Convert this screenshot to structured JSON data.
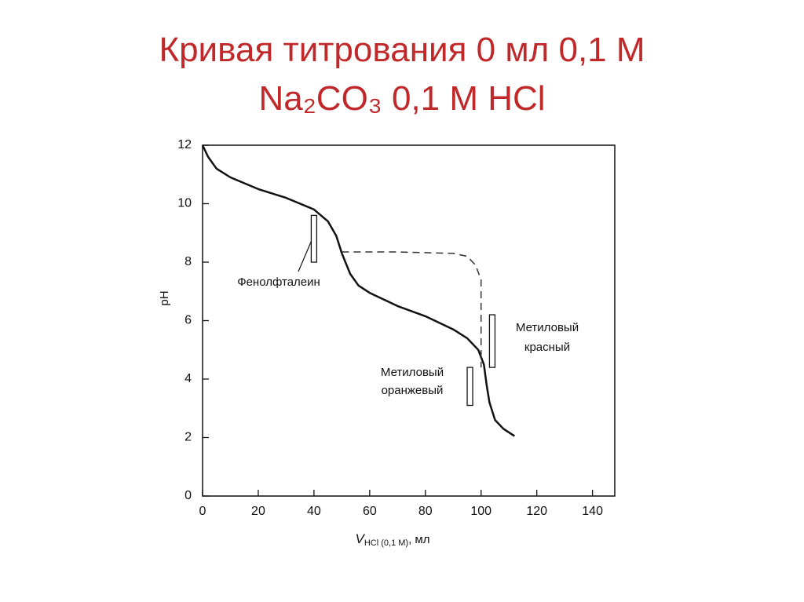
{
  "chart_data": {
    "type": "line",
    "title": [
      "Кривая титрования 0 мл 0,1 М",
      "Na₂CO₃ 0,1 М HCl"
    ],
    "y_label": "pH",
    "x_label": {
      "main": "V",
      "sub": "HCl (0,1 М)",
      "unit": ", мл"
    },
    "xlim": [
      0,
      148
    ],
    "ylim": [
      0,
      12
    ],
    "xticks": [
      0,
      20,
      40,
      60,
      80,
      100,
      120,
      140
    ],
    "yticks": [
      0,
      2,
      4,
      6,
      8,
      10,
      12
    ],
    "series": [
      {
        "color": "#111111",
        "style": "solid",
        "x": [
          0,
          2,
          5,
          10,
          20,
          30,
          40,
          45,
          48,
          50,
          53,
          56,
          60,
          70,
          80,
          90,
          95,
          99,
          101,
          102,
          103,
          105,
          108,
          112
        ],
        "values": [
          12,
          11.6,
          11.2,
          10.9,
          10.5,
          10.2,
          9.8,
          9.4,
          8.9,
          8.3,
          7.6,
          7.2,
          6.95,
          6.5,
          6.15,
          5.7,
          5.4,
          5.0,
          4.5,
          3.8,
          3.2,
          2.6,
          2.3,
          2.05
        ]
      },
      {
        "color": "#333333",
        "style": "dashed",
        "x": [
          50,
          70,
          90,
          95,
          98,
          100,
          100,
          100
        ],
        "values": [
          8.35,
          8.35,
          8.3,
          8.2,
          7.9,
          7.4,
          6,
          4.4
        ]
      }
    ],
    "indicators": [
      {
        "lines": [
          "Фенолфталеин"
        ],
        "x": 40,
        "range": [
          8.0,
          9.6
        ]
      },
      {
        "lines": [
          "Метиловый",
          "красный"
        ],
        "x": 104,
        "range": [
          4.4,
          6.2
        ]
      },
      {
        "lines": [
          "Метиловый",
          "оранжевый"
        ],
        "x": 96,
        "range": [
          3.1,
          4.4
        ]
      }
    ]
  }
}
